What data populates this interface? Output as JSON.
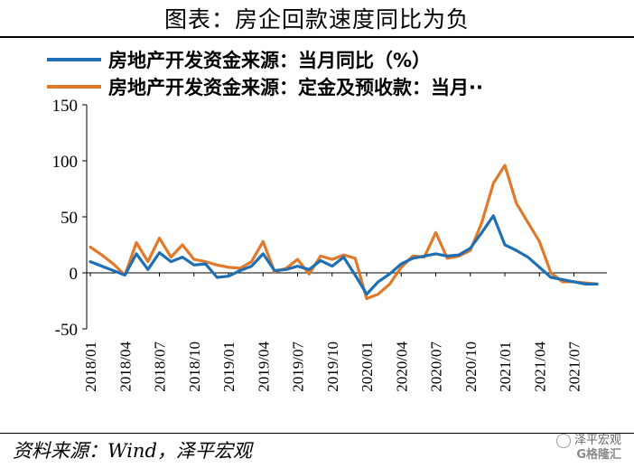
{
  "header": {
    "title": "图表：房企回款速度同比为负"
  },
  "footer": {
    "source": "资料来源：Wind，泽平宏观"
  },
  "watermark": {
    "account": "泽平宏观",
    "logo": "G格隆汇"
  },
  "chart_data": {
    "type": "line",
    "title": "图表：房企回款速度同比为负",
    "xlabel": "",
    "ylabel": "",
    "ylim": [
      -50,
      150
    ],
    "yticks": [
      150,
      100,
      50,
      0,
      -50
    ],
    "grid": false,
    "legend_placement": "top",
    "x_tick_labels": [
      "2018/01",
      "2018/04",
      "2018/07",
      "2018/10",
      "2019/01",
      "2019/04",
      "2019/07",
      "2019/10",
      "2020/01",
      "2020/04",
      "2020/07",
      "2020/10",
      "2021/01",
      "2021/04",
      "2021/07"
    ],
    "x": [
      "2018/01",
      "2018/02",
      "2018/03",
      "2018/04",
      "2018/05",
      "2018/06",
      "2018/07",
      "2018/08",
      "2018/09",
      "2018/10",
      "2018/11",
      "2018/12",
      "2019/01",
      "2019/02",
      "2019/03",
      "2019/04",
      "2019/05",
      "2019/06",
      "2019/07",
      "2019/08",
      "2019/09",
      "2019/10",
      "2019/11",
      "2019/12",
      "2020/01",
      "2020/02",
      "2020/03",
      "2020/04",
      "2020/05",
      "2020/06",
      "2020/07",
      "2020/08",
      "2020/09",
      "2020/10",
      "2020/11",
      "2020/12",
      "2021/01",
      "2021/02",
      "2021/03",
      "2021/04",
      "2021/05",
      "2021/06",
      "2021/07",
      "2021/08",
      "2021/09"
    ],
    "series": [
      {
        "name": "房地产开发资金来源：当月同比（%）",
        "color": "#1f6fb4",
        "values": [
          10,
          6,
          2,
          -2,
          17,
          3,
          18,
          10,
          14,
          7,
          8,
          -4,
          -3,
          2,
          6,
          17,
          2,
          3,
          6,
          3,
          11,
          6,
          14,
          -2,
          -19,
          -8,
          -1,
          8,
          13,
          15,
          17,
          15,
          16,
          22,
          36,
          51,
          25,
          20,
          14,
          5,
          -4,
          -6,
          -8,
          -10,
          -10
        ]
      },
      {
        "name": "房地产开发资金来源：定金及预收款：当月··",
        "color": "#e0792a",
        "values": [
          23,
          16,
          8,
          -2,
          27,
          10,
          31,
          14,
          25,
          12,
          10,
          7,
          5,
          4,
          10,
          28,
          1,
          4,
          12,
          -1,
          15,
          12,
          16,
          13,
          -23,
          -19,
          -10,
          5,
          15,
          14,
          36,
          13,
          15,
          20,
          45,
          80,
          96,
          62,
          45,
          28,
          0,
          -8,
          -8,
          -9,
          -10
        ]
      }
    ]
  }
}
